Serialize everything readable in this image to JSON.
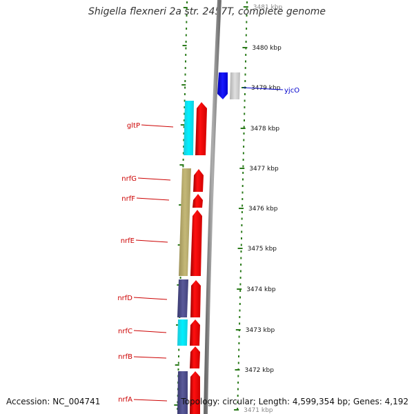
{
  "title": "Shigella flexneri 2a str. 2457T, complete genome",
  "accession": "Accession: NC_004741",
  "summary": "Topology: circular; Length: 4,599,354 bp; Genes: 4,192",
  "scale_ticks": [
    "3481 kbp",
    "3480 kbp",
    "3479 kbp",
    "3478 kbp",
    "3477 kbp",
    "3476 kbp",
    "3475 kbp",
    "3474 kbp",
    "3473 kbp",
    "3472 kbp",
    "3471 kbp"
  ],
  "left_genes": [
    "gltP",
    "nrfG",
    "nrfF",
    "nrfE",
    "nrfD",
    "nrfC",
    "nrfB",
    "nrfA"
  ],
  "right_genes": [
    "yjcO"
  ],
  "colors": {
    "cds": "#ff0000",
    "label_left": "#cc0000",
    "label_right": "#0000cc",
    "backbone": "#888888",
    "tick": "#2a7a1a",
    "cyan": "#00e5ee",
    "khaki": "#b8ac6a",
    "navy": "#484888",
    "blue": "#0000ee",
    "gray": "#c8c8c8"
  }
}
